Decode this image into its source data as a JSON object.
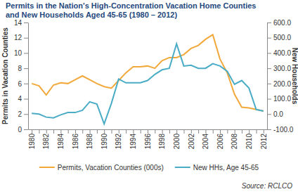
{
  "chart_data": {
    "type": "line",
    "title": [
      "Permits in the Nation's High-Concentration Vacation Home Counties",
      "and New Households Aged 45-65 (1980 – 2012)"
    ],
    "y_label": "Permits in Vacation Counties",
    "y2_label": "New Households",
    "source": "Source: RCLCO",
    "legend": "bottom",
    "grid": false,
    "categories": [
      "1980",
      null,
      "1982",
      null,
      "1984",
      null,
      "1986",
      null,
      "1988",
      null,
      "1990",
      null,
      "1992",
      null,
      "1994",
      null,
      "1996",
      null,
      "1998",
      null,
      "2000",
      null,
      "2002",
      null,
      "2004",
      null,
      "2006",
      null,
      "2008",
      null,
      "2010",
      null,
      "2012"
    ],
    "series": [
      {
        "name": "Permits, Vacation Counties (000s)",
        "color": "#F2A93B",
        "values": [
          6.0,
          5.7,
          4.5,
          5.8,
          6.1,
          6.0,
          6.5,
          7.0,
          6.5,
          6.0,
          5.6,
          5.4,
          6.4,
          7.4,
          8.2,
          8.2,
          8.3,
          8.0,
          9.0,
          9.4,
          9.4,
          9.8,
          10.6,
          11.0,
          11.8,
          12.4,
          9.2,
          7.4,
          4.6,
          2.9,
          2.8,
          2.6,
          2.4
        ]
      },
      {
        "name": "New HHs, Age 45-65",
        "color": "#4BACC6",
        "axis": "y2",
        "values": [
          5,
          0,
          -20,
          -25,
          -5,
          10,
          10,
          25,
          80,
          65,
          -65,
          70,
          230,
          205,
          205,
          205,
          220,
          260,
          290,
          300,
          460,
          315,
          320,
          300,
          300,
          330,
          315,
          280,
          195,
          220,
          170,
          30,
          20
        ]
      }
    ],
    "ylim": [
      0,
      14
    ],
    "yticks": [
      0,
      2,
      4,
      6,
      8,
      10,
      12,
      14
    ],
    "y2lim": [
      -100,
      600
    ],
    "y2ticks": [
      {
        "value": -100,
        "label": "-100.0"
      },
      {
        "value": 0,
        "label": "0.0"
      },
      {
        "value": 100,
        "label": "100.0"
      },
      {
        "value": 200,
        "label": "200.0"
      },
      {
        "value": 300,
        "label": "300.0"
      },
      {
        "value": 400,
        "label": "400.0"
      },
      {
        "value": 500,
        "label": "500.0"
      },
      {
        "value": 600,
        "label": "600.0"
      }
    ]
  }
}
